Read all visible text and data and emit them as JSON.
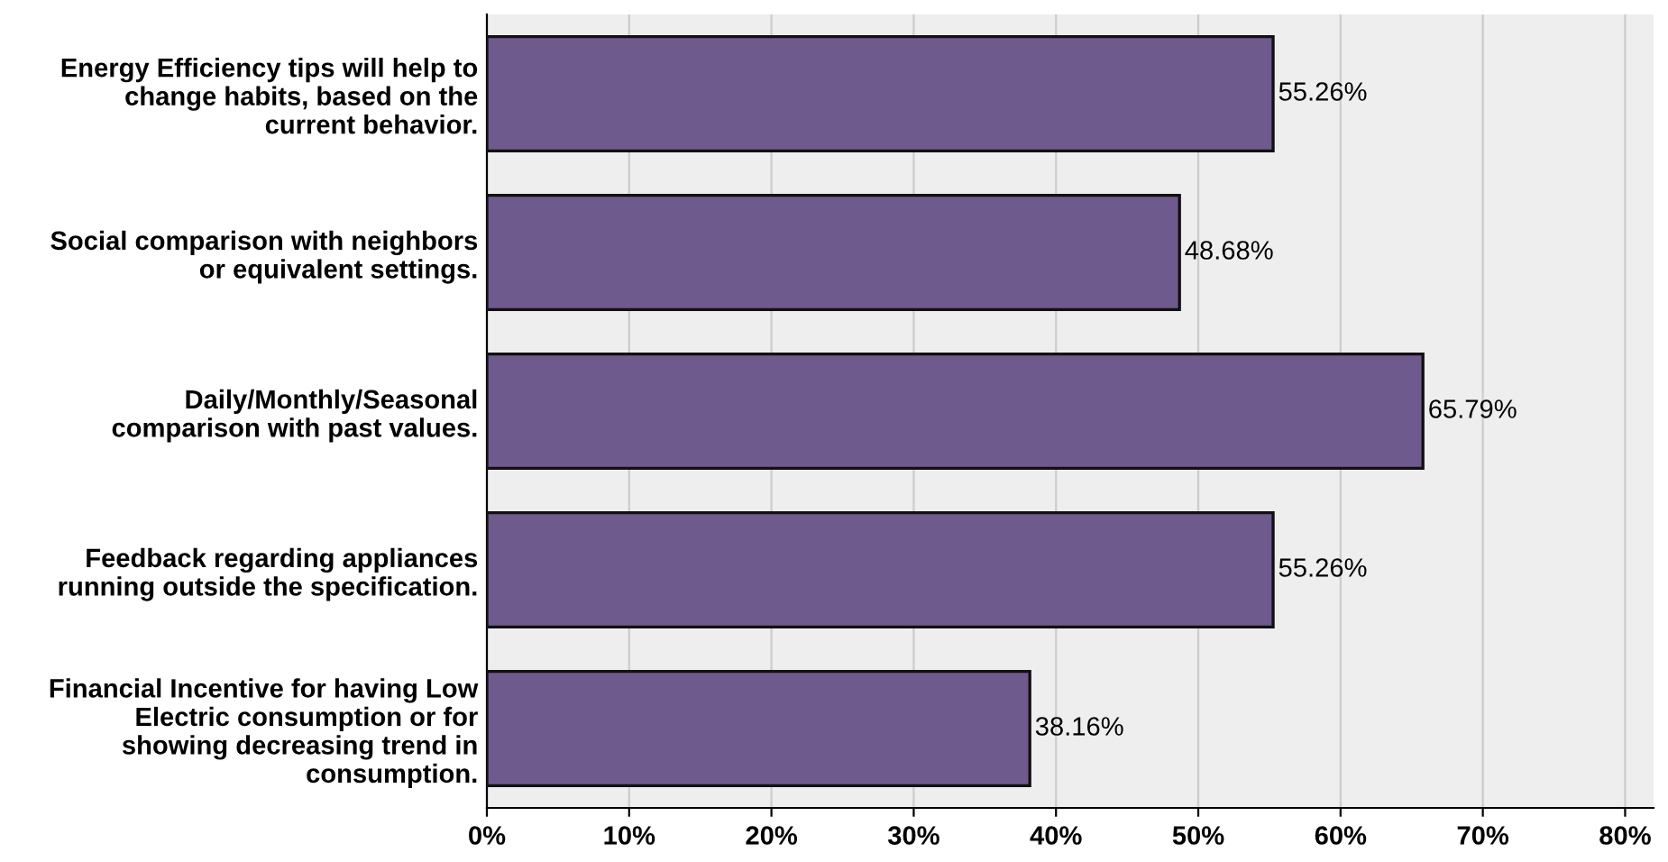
{
  "chart_data": {
    "type": "bar",
    "orientation": "horizontal",
    "categories": [
      "Energy Efficiency tips will help to\nchange habits, based on the\ncurrent behavior.",
      "Social comparison with neighbors\nor equivalent settings.",
      "Daily/Monthly/Seasonal\ncomparison with past values.",
      "Feedback regarding appliances\nrunning outside the specification.",
      "Financial Incentive for having Low\nElectric consumption or for\nshowing decreasing trend in\nconsumption."
    ],
    "values": [
      55.26,
      48.68,
      65.79,
      55.26,
      38.16
    ],
    "value_labels": [
      "55.26%",
      "48.68%",
      "65.79%",
      "55.26%",
      "38.16%"
    ],
    "color": "#6f5a8e",
    "xlim": [
      0,
      82
    ],
    "xticks": [
      {
        "value": 0,
        "label": "0%"
      },
      {
        "value": 10,
        "label": "10%"
      },
      {
        "value": 20,
        "label": "20%"
      },
      {
        "value": 30,
        "label": "30%"
      },
      {
        "value": 40,
        "label": "40%"
      },
      {
        "value": 50,
        "label": "50%"
      },
      {
        "value": 60,
        "label": "60%"
      },
      {
        "value": 70,
        "label": "70%"
      },
      {
        "value": 80,
        "label": "80%"
      }
    ],
    "grid": "x"
  }
}
